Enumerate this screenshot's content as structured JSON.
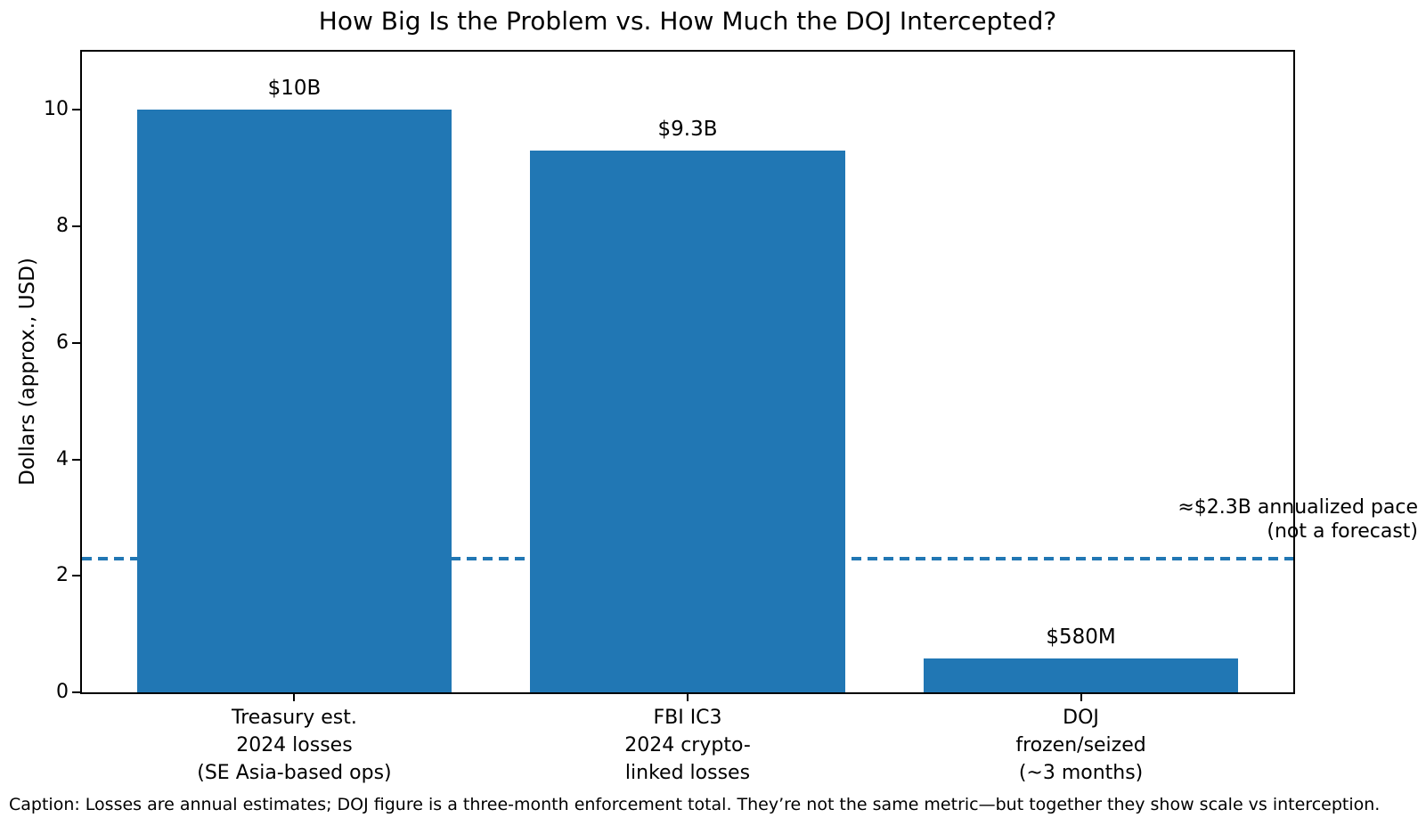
{
  "title": "How Big Is the Problem vs. How Much the DOJ Intercepted?",
  "caption": "Caption: Losses are annual estimates; DOJ figure is a three-month enforcement total. They’re not the same metric—but together they show scale vs interception.",
  "chart_data": {
    "type": "bar",
    "title": "How Big Is the Problem vs. How Much the DOJ Intercepted?",
    "xlabel": "",
    "ylabel": "Dollars (approx., USD)",
    "ylim": [
      0,
      11
    ],
    "yticks": [
      0,
      2,
      4,
      6,
      8,
      10
    ],
    "grid": false,
    "legend": null,
    "categories": [
      "Treasury est.\n2024 losses\n(SE Asia-based ops)",
      "FBI IC3\n2024 crypto-\nlinked losses",
      "DOJ\nfrozen/seized\n(~3 months)"
    ],
    "values": [
      10,
      9.3,
      0.58
    ],
    "bar_labels": [
      "$10B",
      "$9.3B",
      "$580M"
    ],
    "bar_color": "#2177b4",
    "axis_color": "#000000",
    "reference_line": {
      "value": 2.3,
      "style": "dashed",
      "color": "#2177b4",
      "label": "≈$2.3B annualized pace\n(not a forecast)"
    }
  }
}
